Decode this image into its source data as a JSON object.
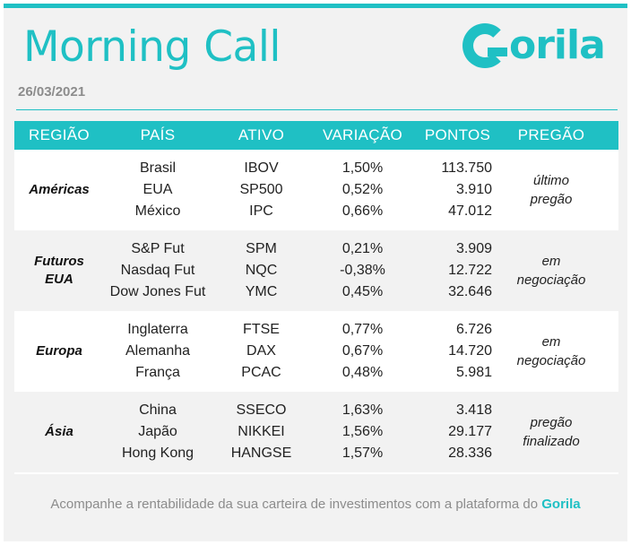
{
  "header": {
    "title": "Morning Call",
    "date": "26/03/2021",
    "logo_text": "orila"
  },
  "table": {
    "columns": [
      "REGIÃO",
      "PAÍS",
      "ATIVO",
      "VARIAÇÃO",
      "PONTOS",
      "PREGÃO"
    ],
    "groups": [
      {
        "region": "Américas",
        "countries": [
          "Brasil",
          "EUA",
          "México"
        ],
        "assets": [
          "IBOV",
          "SP500",
          "IPC"
        ],
        "variations": [
          "1,50%",
          "0,52%",
          "0,66%"
        ],
        "points": [
          "113.750",
          "3.910",
          "47.012"
        ],
        "pregao": [
          "último",
          "pregão"
        ]
      },
      {
        "region": "Futuros EUA",
        "region_lines": [
          "Futuros",
          "EUA"
        ],
        "countries": [
          "S&P Fut",
          "Nasdaq Fut",
          "Dow Jones Fut"
        ],
        "assets": [
          "SPM",
          "NQC",
          "YMC"
        ],
        "variations": [
          "0,21%",
          "-0,38%",
          "0,45%"
        ],
        "points": [
          "3.909",
          "12.722",
          "32.646"
        ],
        "pregao": [
          "em",
          "negociação"
        ]
      },
      {
        "region": "Europa",
        "countries": [
          "Inglaterra",
          "Alemanha",
          "França"
        ],
        "assets": [
          "FTSE",
          "DAX",
          "PCAC"
        ],
        "variations": [
          "0,77%",
          "0,67%",
          "0,48%"
        ],
        "points": [
          "6.726",
          "14.720",
          "5.981"
        ],
        "pregao": [
          "em",
          "negociação"
        ]
      },
      {
        "region": "Ásia",
        "countries": [
          "China",
          "Japão",
          "Hong Kong"
        ],
        "assets": [
          "SSECO",
          "NIKKEI",
          "HANGSE"
        ],
        "variations": [
          "1,63%",
          "1,56%",
          "1,57%"
        ],
        "points": [
          "3.418",
          "29.177",
          "28.336"
        ],
        "pregao": [
          "pregão",
          "finalizado"
        ]
      }
    ]
  },
  "footer": {
    "text": "Acompanhe a rentabilidade da sua carteira de investimentos com a plataforma do ",
    "brand": "Gorila"
  },
  "colors": {
    "accent": "#1fc0c4",
    "positive": "#28a745",
    "negative": "#e02424"
  }
}
